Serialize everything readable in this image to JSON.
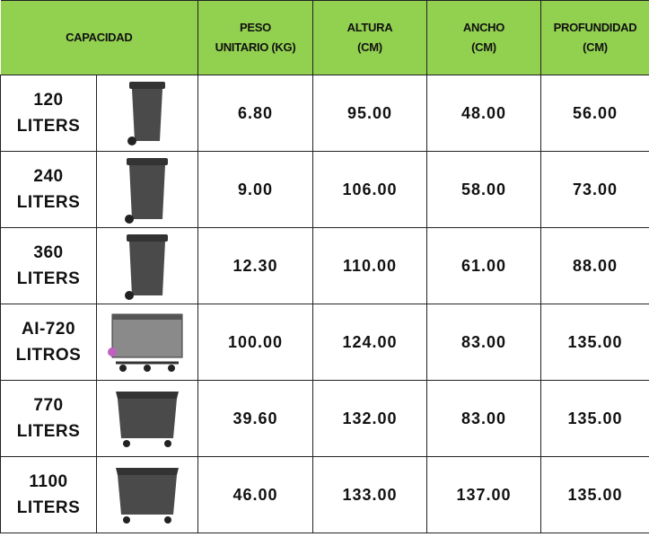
{
  "header": {
    "capacidad": "CAPACIDAD",
    "peso": [
      "PESO",
      "UNITARIO (KG)"
    ],
    "altura": [
      "ALTURA",
      "(CM)"
    ],
    "ancho": [
      "ANCHO",
      "(CM)"
    ],
    "profundidad": [
      "PROFUNDIDAD",
      "(CM)"
    ]
  },
  "colors": {
    "header_bg": "#92d050",
    "bin": "#4a4a4a"
  },
  "rows": [
    {
      "capacity": [
        "120",
        "LITERS"
      ],
      "image": "bin-2-wheel-small",
      "peso": "6.80",
      "altura": "95.00",
      "ancho": "48.00",
      "profundidad": "56.00"
    },
    {
      "capacity": [
        "240",
        "LITERS"
      ],
      "image": "bin-2-wheel-medium",
      "peso": "9.00",
      "altura": "106.00",
      "ancho": "58.00",
      "profundidad": "73.00"
    },
    {
      "capacity": [
        "360",
        "LITERS"
      ],
      "image": "bin-2-wheel-large",
      "peso": "12.30",
      "altura": "110.00",
      "ancho": "61.00",
      "profundidad": "88.00"
    },
    {
      "capacity": [
        "AI-720",
        "LITROS"
      ],
      "image": "metal-container-4-wheel",
      "peso": "100.00",
      "altura": "124.00",
      "ancho": "83.00",
      "profundidad": "135.00"
    },
    {
      "capacity": [
        "770",
        "LITERS"
      ],
      "image": "bin-4-wheel",
      "peso": "39.60",
      "altura": "132.00",
      "ancho": "83.00",
      "profundidad": "135.00"
    },
    {
      "capacity": [
        "1100",
        "LITERS"
      ],
      "image": "bin-4-wheel-large",
      "peso": "46.00",
      "altura": "133.00",
      "ancho": "137.00",
      "profundidad": "135.00"
    }
  ]
}
